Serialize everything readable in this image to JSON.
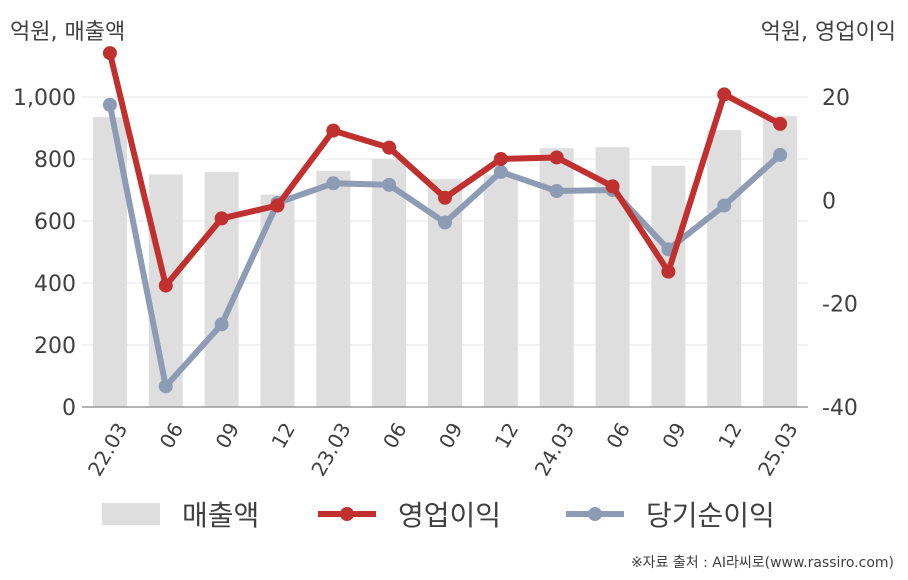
{
  "chart_data": {
    "type": "bar",
    "title": "",
    "y_left_unit": "억원, 매출액",
    "y_right_unit": "억원, 영업이익",
    "categories": [
      "22.03",
      "06",
      "09",
      "12",
      "23.03",
      "06",
      "09",
      "12",
      "24.03",
      "06",
      "09",
      "12",
      "25.03"
    ],
    "ylim_left": [
      0,
      1000
    ],
    "ylim_right": [
      -40,
      20
    ],
    "left_ticks": [
      "0",
      "200",
      "400",
      "600",
      "800",
      "1,000"
    ],
    "left_tick_values": [
      0,
      200,
      400,
      600,
      800,
      1000
    ],
    "right_ticks": [
      "-40",
      "-20",
      "0",
      "20"
    ],
    "right_tick_values": [
      -40,
      -20,
      0,
      20
    ],
    "series": [
      {
        "name": "매출액",
        "type": "bar",
        "axis": "left",
        "color": "#dedede",
        "values": [
          935,
          750,
          758,
          685,
          762,
          800,
          735,
          750,
          835,
          838,
          778,
          893,
          938
        ]
      },
      {
        "name": "영업이익",
        "type": "line",
        "axis": "right",
        "color": "#c0302e",
        "values": [
          28.5,
          -16.5,
          -3.5,
          -1.0,
          13.5,
          10.2,
          0.5,
          8.0,
          8.3,
          2.7,
          -13.8,
          20.5,
          14.8
        ]
      },
      {
        "name": "당기순이익",
        "type": "line",
        "axis": "right",
        "color": "#8e9bb5",
        "values": [
          18.5,
          -36.0,
          -24.0,
          -0.5,
          3.3,
          3.0,
          -4.3,
          5.5,
          1.8,
          2.0,
          -9.5,
          -1.0,
          8.8
        ]
      }
    ],
    "grid": true,
    "legend_position": "bottom"
  },
  "source_note": "※자료 출처 : AI라씨로(www.rassiro.com)"
}
